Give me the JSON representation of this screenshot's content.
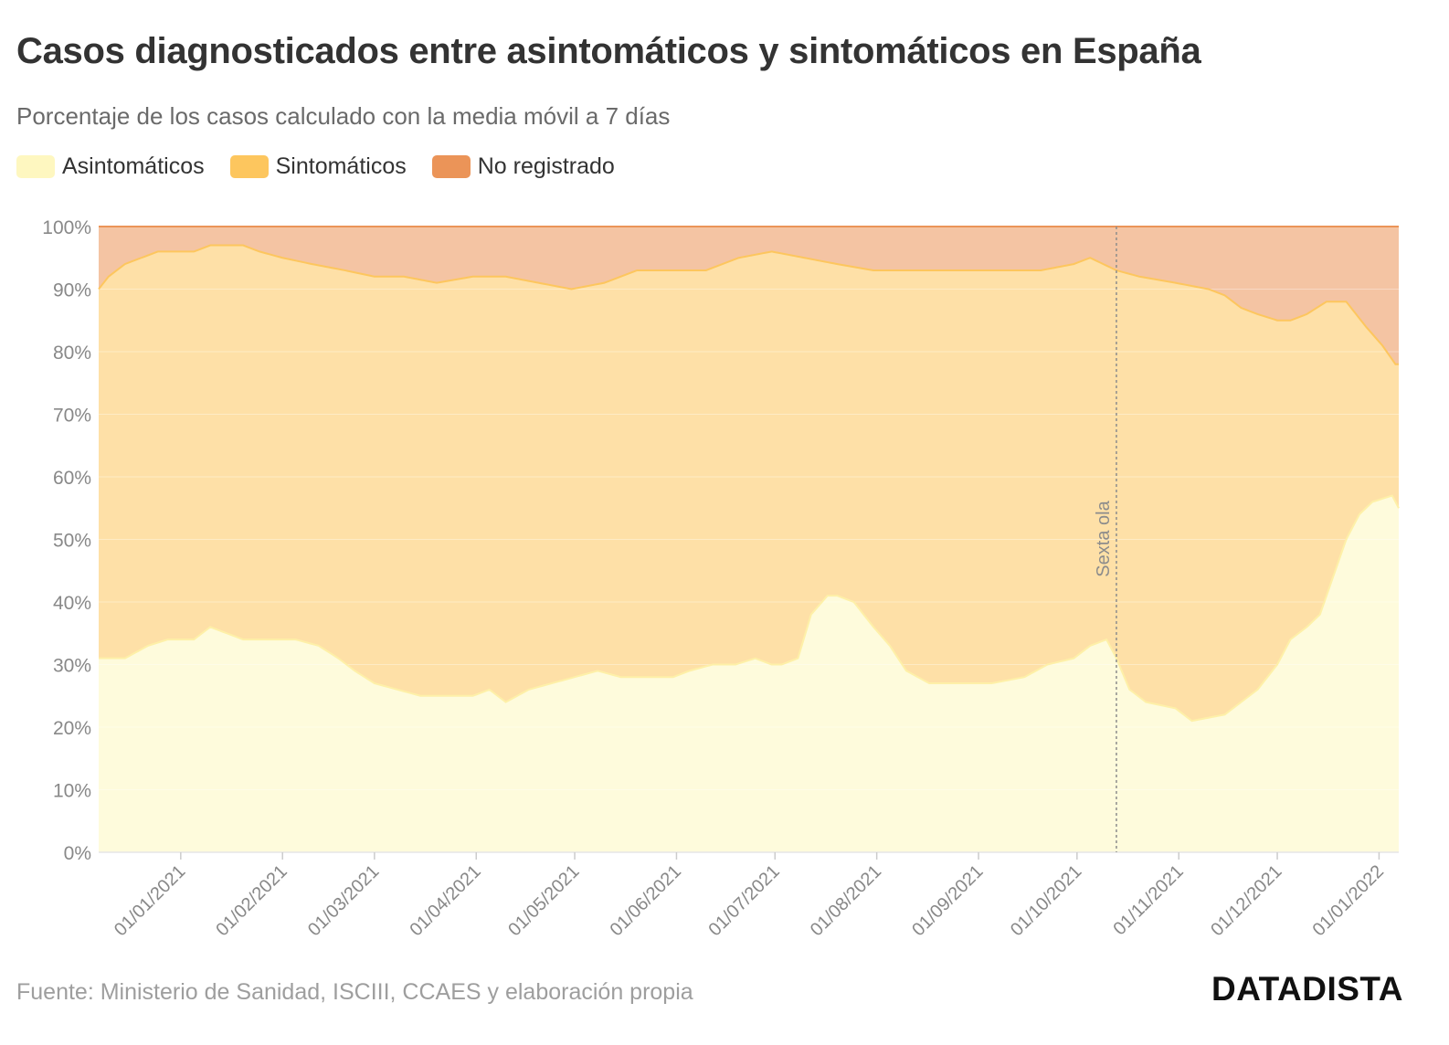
{
  "header": {
    "title": "Casos diagnosticados entre asintomáticos y sintomáticos en España",
    "subtitle": "Porcentaje de los casos calculado con la media móvil a 7 días"
  },
  "legend": [
    {
      "label": "Asintomáticos",
      "color": "#fef7c0"
    },
    {
      "label": "Sintomáticos",
      "color": "#fdc65e"
    },
    {
      "label": "No registrado",
      "color": "#eb9458"
    }
  ],
  "footer": {
    "source": "Fuente: Ministerio de Sanidad, ISCIII, CCAES y elaboración propia",
    "brand": "DATADISTA"
  },
  "chart_data": {
    "type": "area",
    "stacked": true,
    "title": "Casos diagnosticados entre asintomáticos y sintomáticos en España",
    "subtitle": "Porcentaje de los casos calculado con la media móvil a 7 días",
    "xlabel": "",
    "ylabel": "",
    "ylim": [
      0,
      100
    ],
    "y_ticks": [
      "0%",
      "10%",
      "20%",
      "30%",
      "40%",
      "50%",
      "60%",
      "70%",
      "80%",
      "90%",
      "100%"
    ],
    "x_range": [
      "2020-12-07",
      "2022-01-07"
    ],
    "x_ticks": [
      "01/01/2021",
      "01/02/2021",
      "01/03/2021",
      "01/04/2021",
      "01/05/2021",
      "01/06/2021",
      "01/07/2021",
      "01/08/2021",
      "01/09/2021",
      "01/10/2021",
      "01/11/2021",
      "01/12/2021",
      "01/01/2022"
    ],
    "annotation": {
      "label": "Sexta ola",
      "date": "2021-10-13"
    },
    "series": [
      {
        "name": "Asintomáticos",
        "color": "#fef7c0",
        "line": "#fef0a8",
        "points": [
          [
            "2020-12-07",
            31
          ],
          [
            "2020-12-15",
            31
          ],
          [
            "2020-12-22",
            33
          ],
          [
            "2020-12-28",
            34
          ],
          [
            "2021-01-05",
            34
          ],
          [
            "2021-01-10",
            36
          ],
          [
            "2021-01-15",
            35
          ],
          [
            "2021-01-20",
            34
          ],
          [
            "2021-01-31",
            34
          ],
          [
            "2021-02-05",
            34
          ],
          [
            "2021-02-12",
            33
          ],
          [
            "2021-02-18",
            31
          ],
          [
            "2021-02-23",
            29
          ],
          [
            "2021-03-01",
            27
          ],
          [
            "2021-03-08",
            26
          ],
          [
            "2021-03-15",
            25
          ],
          [
            "2021-03-31",
            25
          ],
          [
            "2021-04-05",
            26
          ],
          [
            "2021-04-10",
            24
          ],
          [
            "2021-04-17",
            26
          ],
          [
            "2021-04-24",
            27
          ],
          [
            "2021-05-01",
            28
          ],
          [
            "2021-05-08",
            29
          ],
          [
            "2021-05-15",
            28
          ],
          [
            "2021-05-31",
            28
          ],
          [
            "2021-06-05",
            29
          ],
          [
            "2021-06-12",
            30
          ],
          [
            "2021-06-19",
            30
          ],
          [
            "2021-06-25",
            31
          ],
          [
            "2021-06-30",
            30
          ],
          [
            "2021-07-03",
            30
          ],
          [
            "2021-07-08",
            31
          ],
          [
            "2021-07-12",
            38
          ],
          [
            "2021-07-17",
            41
          ],
          [
            "2021-07-20",
            41
          ],
          [
            "2021-07-25",
            40
          ],
          [
            "2021-07-31",
            36
          ],
          [
            "2021-08-05",
            33
          ],
          [
            "2021-08-10",
            29
          ],
          [
            "2021-08-17",
            27
          ],
          [
            "2021-08-25",
            27
          ],
          [
            "2021-09-05",
            27
          ],
          [
            "2021-09-15",
            28
          ],
          [
            "2021-09-22",
            30
          ],
          [
            "2021-09-30",
            31
          ],
          [
            "2021-10-05",
            33
          ],
          [
            "2021-10-10",
            34
          ],
          [
            "2021-10-13",
            31
          ],
          [
            "2021-10-17",
            26
          ],
          [
            "2021-10-22",
            24
          ],
          [
            "2021-10-31",
            23
          ],
          [
            "2021-11-05",
            21
          ],
          [
            "2021-11-15",
            22
          ],
          [
            "2021-11-20",
            24
          ],
          [
            "2021-11-25",
            26
          ],
          [
            "2021-12-01",
            30
          ],
          [
            "2021-12-05",
            34
          ],
          [
            "2021-12-10",
            36
          ],
          [
            "2021-12-14",
            38
          ],
          [
            "2021-12-18",
            44
          ],
          [
            "2021-12-22",
            50
          ],
          [
            "2021-12-26",
            54
          ],
          [
            "2021-12-30",
            56
          ],
          [
            "2022-01-05",
            57
          ],
          [
            "2022-01-07",
            55
          ]
        ]
      },
      {
        "name": "Sintomáticos",
        "color": "#fdc65e",
        "line": "#fdc65e",
        "points": [
          [
            "2020-12-07",
            90
          ],
          [
            "2020-12-10",
            92
          ],
          [
            "2020-12-15",
            94
          ],
          [
            "2020-12-20",
            95
          ],
          [
            "2020-12-25",
            96
          ],
          [
            "2021-01-05",
            96
          ],
          [
            "2021-01-10",
            97
          ],
          [
            "2021-01-20",
            97
          ],
          [
            "2021-01-25",
            96
          ],
          [
            "2021-02-01",
            95
          ],
          [
            "2021-02-10",
            94
          ],
          [
            "2021-02-20",
            93
          ],
          [
            "2021-03-01",
            92
          ],
          [
            "2021-03-10",
            92
          ],
          [
            "2021-03-20",
            91
          ],
          [
            "2021-03-31",
            92
          ],
          [
            "2021-04-10",
            92
          ],
          [
            "2021-04-20",
            91
          ],
          [
            "2021-04-30",
            90
          ],
          [
            "2021-05-10",
            91
          ],
          [
            "2021-05-20",
            93
          ],
          [
            "2021-05-31",
            93
          ],
          [
            "2021-06-10",
            93
          ],
          [
            "2021-06-20",
            95
          ],
          [
            "2021-06-30",
            96
          ],
          [
            "2021-07-10",
            95
          ],
          [
            "2021-07-20",
            94
          ],
          [
            "2021-07-31",
            93
          ],
          [
            "2021-08-10",
            93
          ],
          [
            "2021-08-20",
            93
          ],
          [
            "2021-08-31",
            93
          ],
          [
            "2021-09-10",
            93
          ],
          [
            "2021-09-20",
            93
          ],
          [
            "2021-09-30",
            94
          ],
          [
            "2021-10-05",
            95
          ],
          [
            "2021-10-13",
            93
          ],
          [
            "2021-10-20",
            92
          ],
          [
            "2021-10-31",
            91
          ],
          [
            "2021-11-10",
            90
          ],
          [
            "2021-11-15",
            89
          ],
          [
            "2021-11-20",
            87
          ],
          [
            "2021-11-25",
            86
          ],
          [
            "2021-12-01",
            85
          ],
          [
            "2021-12-05",
            85
          ],
          [
            "2021-12-10",
            86
          ],
          [
            "2021-12-16",
            88
          ],
          [
            "2021-12-22",
            88
          ],
          [
            "2021-12-25",
            86
          ],
          [
            "2021-12-28",
            84
          ],
          [
            "2022-01-02",
            81
          ],
          [
            "2022-01-06",
            78
          ],
          [
            "2022-01-07",
            78
          ]
        ]
      },
      {
        "name": "No registrado",
        "color": "#eb9458",
        "line": "#eb9458",
        "points": [
          [
            "2020-12-07",
            100
          ],
          [
            "2022-01-07",
            100
          ]
        ]
      }
    ]
  }
}
